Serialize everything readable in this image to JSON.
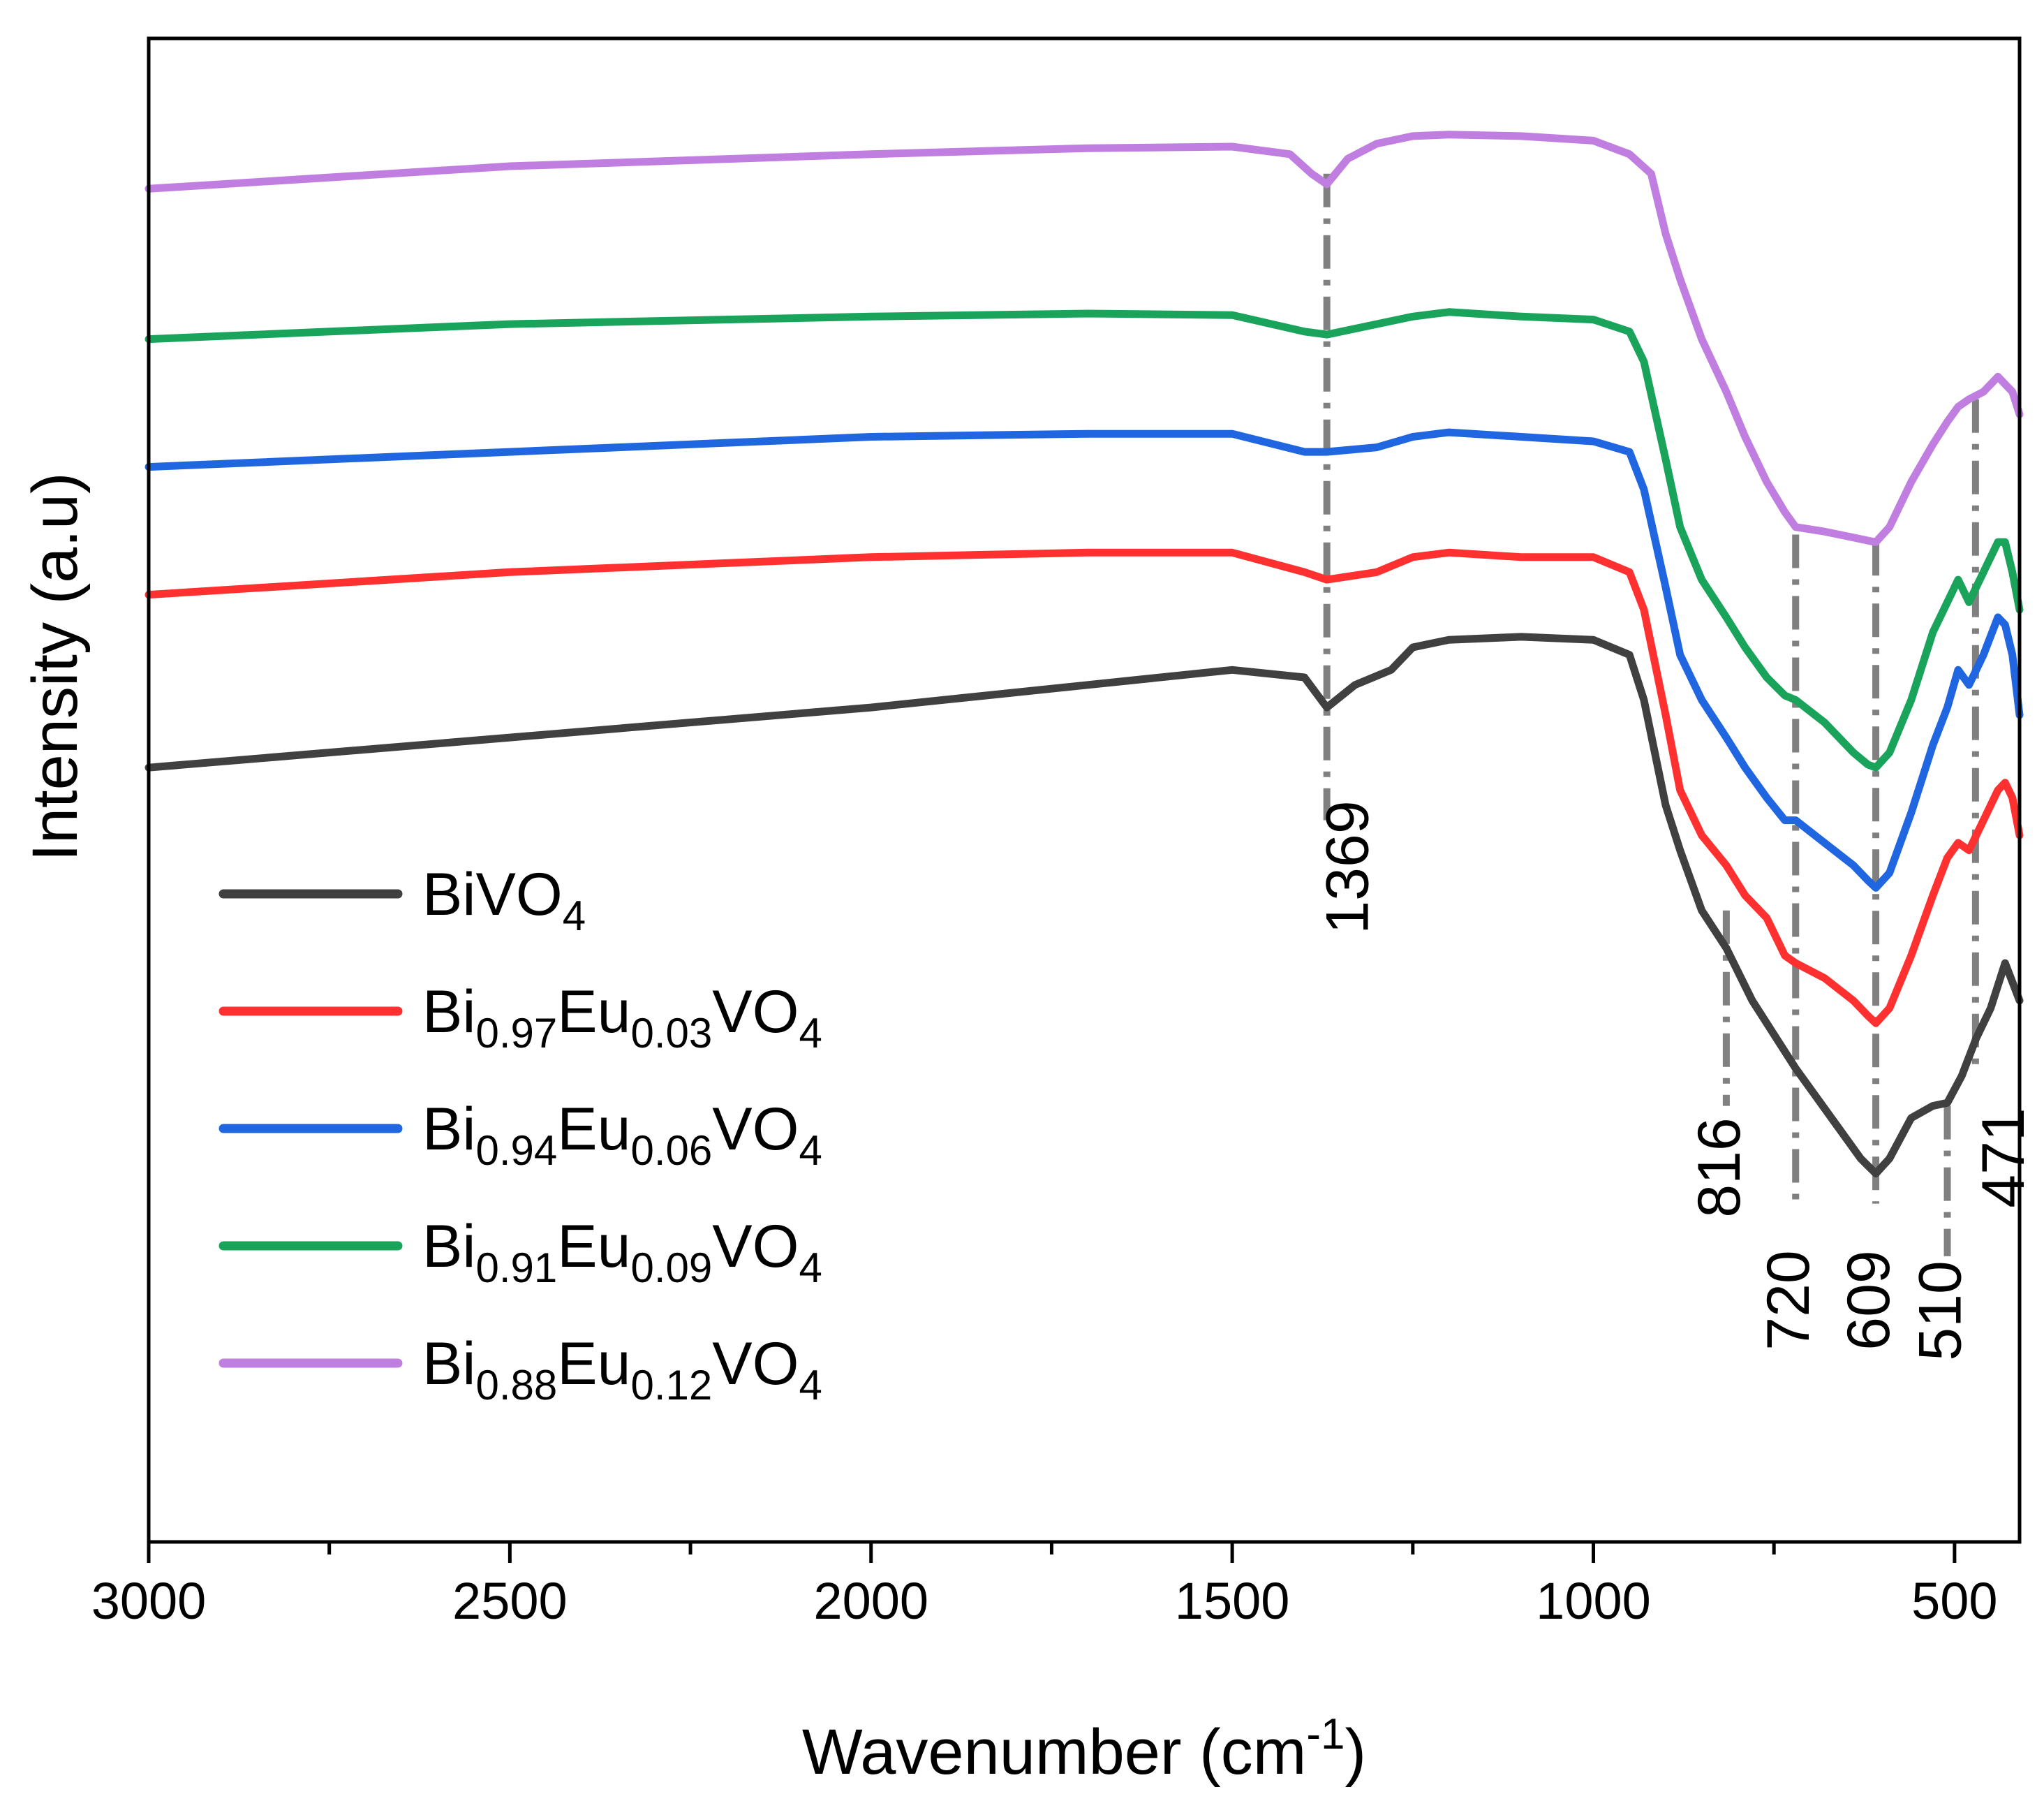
{
  "chart_data": {
    "type": "line",
    "title": "",
    "xlabel": "Wavenumber (cm",
    "xlabel_sup": "-1",
    "xlabel_close": ")",
    "ylabel": "Intensity (a.u)",
    "xlim": [
      3000,
      410
    ],
    "ylim": [
      0,
      100
    ],
    "x_ticks": [
      3000,
      2500,
      2000,
      1500,
      1000,
      500
    ],
    "x_tick_labels": [
      "3000",
      "2500",
      "2000",
      "1500",
      "1000",
      "500"
    ],
    "y_ticks_shown": false,
    "legend_position": "lower-left",
    "series": [
      {
        "name": "BiVO4",
        "color": "#404040",
        "label_parts": [
          {
            "t": "BiVO"
          },
          {
            "t": "4",
            "sub": true
          }
        ],
        "x": [
          3000,
          2500,
          2000,
          1700,
          1500,
          1400,
          1369,
          1330,
          1280,
          1250,
          1200,
          1100,
          1000,
          950,
          930,
          900,
          880,
          850,
          816,
          780,
          720,
          660,
          630,
          609,
          590,
          560,
          530,
          510,
          490,
          470,
          450,
          430,
          410
        ],
        "y": [
          51.5,
          53.5,
          55.5,
          57,
          58,
          57.5,
          55.5,
          57,
          58,
          59.5,
          60,
          60.2,
          60,
          59,
          56,
          49,
          46,
          42,
          39.5,
          36,
          31.5,
          27.5,
          25.5,
          24.5,
          25.5,
          28.2,
          29,
          29.2,
          31,
          33.5,
          35.5,
          38.5,
          36
        ]
      },
      {
        "name": "Bi0.97Eu0.03VO4",
        "color": "#ff3030",
        "label_parts": [
          {
            "t": "Bi"
          },
          {
            "t": "0.97",
            "sub": true
          },
          {
            "t": "Eu"
          },
          {
            "t": "0.03",
            "sub": true
          },
          {
            "t": "VO"
          },
          {
            "t": "4",
            "sub": true
          }
        ],
        "x": [
          3000,
          2500,
          2000,
          1700,
          1500,
          1400,
          1369,
          1300,
          1250,
          1200,
          1100,
          1000,
          950,
          930,
          900,
          880,
          850,
          816,
          790,
          760,
          735,
          720,
          680,
          640,
          620,
          609,
          590,
          560,
          530,
          510,
          495,
          480,
          460,
          440,
          430,
          420,
          410
        ],
        "y": [
          63,
          64.5,
          65.5,
          65.8,
          65.8,
          64.5,
          64,
          64.5,
          65.5,
          65.8,
          65.5,
          65.5,
          64.5,
          62,
          55,
          50,
          47,
          45,
          43,
          41.5,
          39,
          38.5,
          37.5,
          36,
          35,
          34.5,
          35.5,
          39,
          43,
          45.5,
          46.5,
          46,
          48,
          50,
          50.5,
          49.5,
          47
        ]
      },
      {
        "name": "Bi0.94Eu0.06VO4",
        "color": "#1f66e0",
        "label_parts": [
          {
            "t": "Bi"
          },
          {
            "t": "0.94",
            "sub": true
          },
          {
            "t": "Eu"
          },
          {
            "t": "0.06",
            "sub": true
          },
          {
            "t": "VO"
          },
          {
            "t": "4",
            "sub": true
          }
        ],
        "x": [
          3000,
          2500,
          2000,
          1700,
          1500,
          1400,
          1369,
          1300,
          1250,
          1200,
          1100,
          1000,
          950,
          930,
          900,
          880,
          850,
          816,
          790,
          760,
          735,
          720,
          680,
          640,
          620,
          609,
          590,
          560,
          530,
          510,
          495,
          480,
          460,
          440,
          430,
          420,
          410
        ],
        "y": [
          71.5,
          72.5,
          73.5,
          73.7,
          73.7,
          72.5,
          72.5,
          72.8,
          73.5,
          73.8,
          73.5,
          73.2,
          72.5,
          70,
          63.5,
          59,
          56,
          53.5,
          51.5,
          49.5,
          48,
          48,
          46.5,
          45,
          44,
          43.5,
          44.5,
          48.5,
          53,
          55.5,
          58,
          57,
          59,
          61.5,
          61,
          59,
          55
        ]
      },
      {
        "name": "Bi0.91Eu0.09VO4",
        "color": "#1aa35a",
        "label_parts": [
          {
            "t": "Bi"
          },
          {
            "t": "0.91",
            "sub": true
          },
          {
            "t": "Eu"
          },
          {
            "t": "0.09",
            "sub": true
          },
          {
            "t": "VO"
          },
          {
            "t": "4",
            "sub": true
          }
        ],
        "x": [
          3000,
          2500,
          2000,
          1700,
          1500,
          1400,
          1369,
          1300,
          1250,
          1200,
          1100,
          1000,
          950,
          930,
          900,
          880,
          850,
          816,
          790,
          760,
          735,
          720,
          680,
          640,
          620,
          609,
          590,
          560,
          530,
          510,
          495,
          480,
          460,
          440,
          430,
          420,
          410
        ],
        "y": [
          80,
          81,
          81.5,
          81.7,
          81.6,
          80.5,
          80.3,
          81,
          81.5,
          81.8,
          81.5,
          81.3,
          80.5,
          78.5,
          72,
          67.5,
          64,
          61.5,
          59.5,
          57.5,
          56.3,
          56,
          54.5,
          52.5,
          51.7,
          51.5,
          52.5,
          56,
          60.5,
          62.5,
          64,
          62.5,
          64.5,
          66.5,
          66.5,
          64.5,
          62
        ]
      },
      {
        "name": "Bi0.88Eu0.12VO4",
        "color": "#c07ee0",
        "label_parts": [
          {
            "t": "Bi"
          },
          {
            "t": "0.88",
            "sub": true
          },
          {
            "t": "Eu"
          },
          {
            "t": "0.12",
            "sub": true
          },
          {
            "t": "VO"
          },
          {
            "t": "4",
            "sub": true
          }
        ],
        "x": [
          3000,
          2500,
          2000,
          1700,
          1500,
          1420,
          1390,
          1369,
          1340,
          1300,
          1250,
          1200,
          1100,
          1000,
          950,
          920,
          900,
          880,
          850,
          816,
          790,
          760,
          735,
          720,
          680,
          640,
          620,
          609,
          590,
          560,
          530,
          510,
          495,
          480,
          460,
          440,
          430,
          420,
          410
        ],
        "y": [
          90,
          91.5,
          92.3,
          92.7,
          92.8,
          92.3,
          91,
          90.3,
          92,
          93,
          93.5,
          93.6,
          93.5,
          93.2,
          92.3,
          91,
          87,
          84,
          80,
          76.5,
          73.5,
          70.5,
          68.5,
          67.5,
          67.2,
          66.8,
          66.6,
          66.5,
          67.5,
          70.5,
          73,
          74.5,
          75.5,
          76,
          76.5,
          77.5,
          77,
          76.5,
          75
        ]
      }
    ],
    "annotations": [
      {
        "label": "1369",
        "x": 1369,
        "y_top": 91,
        "y_bottom": 48,
        "style": "dashdot"
      },
      {
        "label": "816",
        "x": 816,
        "y_top": 42,
        "y_bottom": 29,
        "style": "dashdot"
      },
      {
        "label": "720",
        "x": 720,
        "y_top": 67,
        "y_bottom": 22.5,
        "style": "dashdot"
      },
      {
        "label": "609",
        "x": 609,
        "y_top": 66.5,
        "y_bottom": 22.5,
        "style": "dashdot"
      },
      {
        "label": "510",
        "x": 510,
        "y_top": 29,
        "y_bottom": 19,
        "style": "dashdot"
      },
      {
        "label": "471",
        "x": 471,
        "y_top": 76,
        "y_bottom": 31.5,
        "style": "dashdot"
      }
    ]
  }
}
